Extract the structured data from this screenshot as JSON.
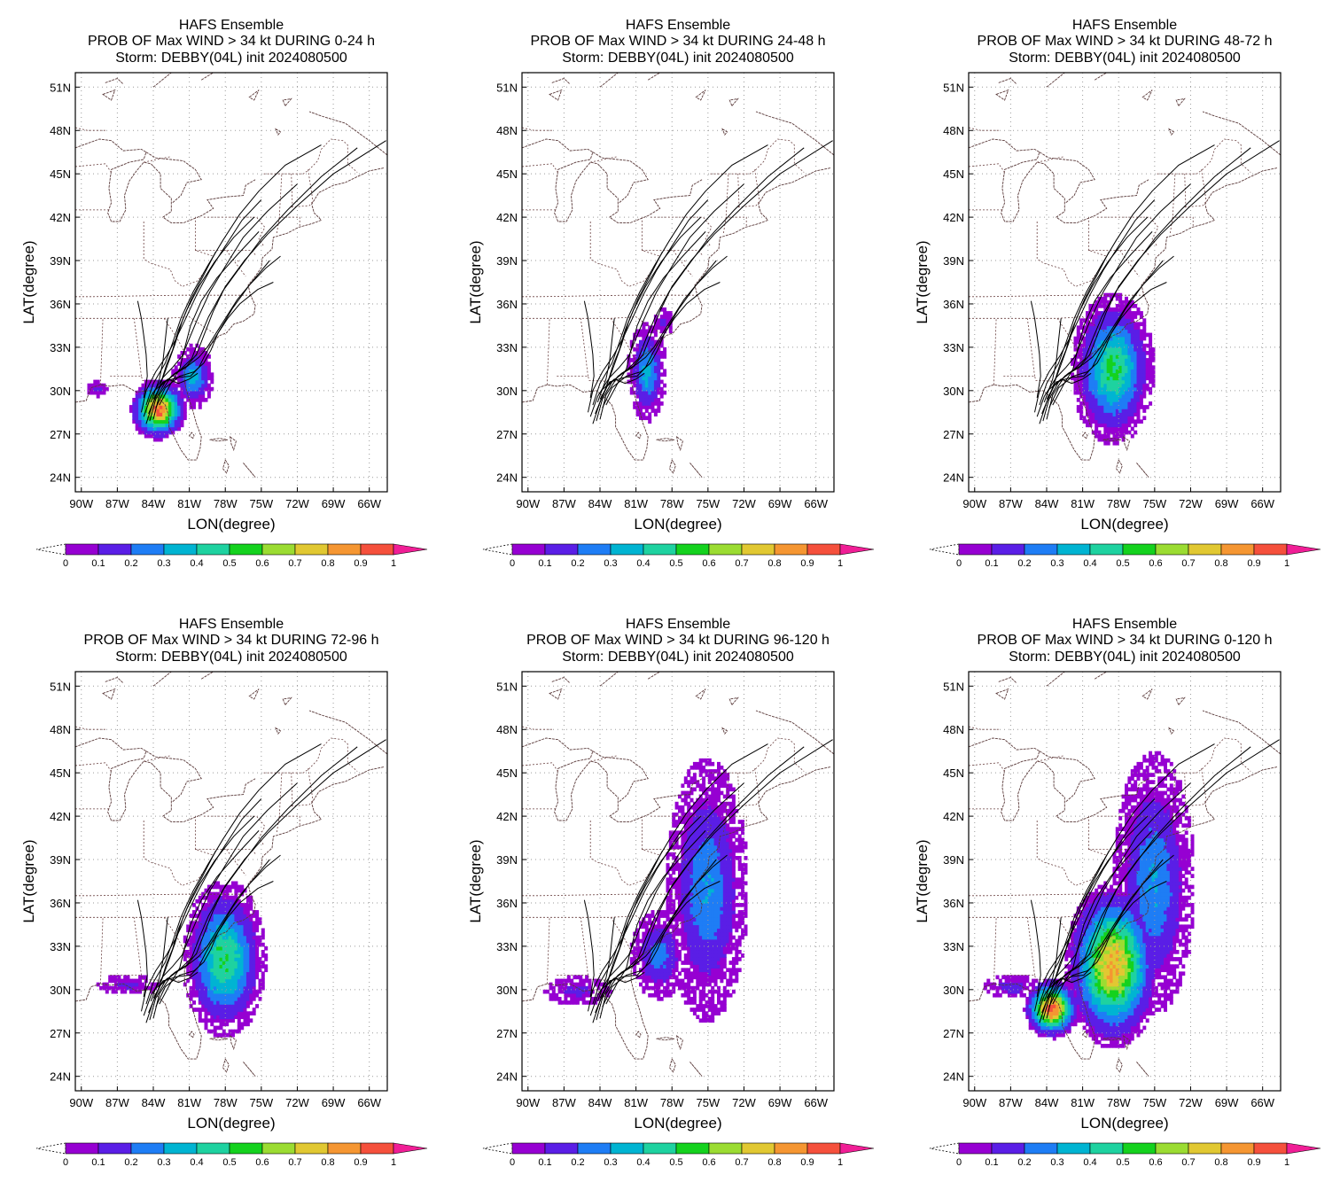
{
  "figure": {
    "panel_title": "HAFS Ensemble",
    "storm_line": "Storm: DEBBY(04L) init 2024080500",
    "colorbar_ticks": [
      "0",
      "0.1",
      "0.2",
      "0.3",
      "0.4",
      "0.5",
      "0.6",
      "0.7",
      "0.8",
      "0.9",
      "1"
    ],
    "colorbar_colors": [
      "#9600d2",
      "#5a1ee6",
      "#1e7df5",
      "#00b4d2",
      "#1ed2a0",
      "#14d21e",
      "#9bdc32",
      "#e1c832",
      "#f59632",
      "#f5503c"
    ],
    "colorbar_over_color": "#f01e96",
    "lat_ticks": [
      "24N",
      "27N",
      "30N",
      "33N",
      "36N",
      "39N",
      "42N",
      "45N",
      "48N",
      "51N"
    ],
    "lon_ticks": [
      "90W",
      "87W",
      "84W",
      "81W",
      "78W",
      "75W",
      "72W",
      "69W",
      "66W"
    ],
    "xlabel": "LON(degree)",
    "ylabel": "LAT(degree)"
  },
  "chart_data": [
    {
      "type": "heatmap",
      "title": [
        "HAFS Ensemble",
        "PROB OF Max WIND > 34 kt DURING  0-24 h",
        "Storm: DEBBY(04L) init 2024080500"
      ],
      "xlabel": "LON(degree)",
      "ylabel": "LAT(degree)",
      "xlim": [
        -90.5,
        -64.5
      ],
      "ylim": [
        23,
        52
      ],
      "grid": true,
      "probability_areas": [
        {
          "lon": -83.7,
          "lat": 28.6,
          "rx": 1.9,
          "ry": 1.7,
          "max": 0.95
        },
        {
          "lon": -80.8,
          "lat": 30.8,
          "rx": 1.4,
          "ry": 1.8,
          "max": 0.35
        },
        {
          "lon": -88.8,
          "lat": 30.0,
          "rx": 0.8,
          "ry": 0.5,
          "max": 0.15
        }
      ]
    },
    {
      "type": "heatmap",
      "title": [
        "HAFS Ensemble",
        "PROB OF Max WIND > 34 kt DURING 24-48 h",
        "Storm: DEBBY(04L) init 2024080500"
      ],
      "xlabel": "LON(degree)",
      "ylabel": "LAT(degree)",
      "xlim": [
        -90.5,
        -64.5
      ],
      "ylim": [
        23,
        52
      ],
      "grid": true,
      "probability_areas": [
        {
          "lon": -80.2,
          "lat": 31.2,
          "rx": 1.3,
          "ry": 2.8,
          "max": 0.35
        },
        {
          "lon": -78.8,
          "lat": 34.6,
          "rx": 0.8,
          "ry": 1.0,
          "max": 0.12
        }
      ]
    },
    {
      "type": "heatmap",
      "title": [
        "HAFS Ensemble",
        "PROB OF Max WIND > 34 kt DURING 48-72 h",
        "Storm: DEBBY(04L) init 2024080500"
      ],
      "xlabel": "LON(degree)",
      "ylabel": "LAT(degree)",
      "xlim": [
        -90.5,
        -64.5
      ],
      "ylim": [
        23,
        52
      ],
      "grid": true,
      "probability_areas": [
        {
          "lon": -78.6,
          "lat": 31.4,
          "rx": 2.8,
          "ry": 4.2,
          "max": 0.52
        }
      ]
    },
    {
      "type": "heatmap",
      "title": [
        "HAFS Ensemble",
        "PROB OF Max WIND > 34 kt DURING 72-96 h",
        "Storm: DEBBY(04L) init 2024080500"
      ],
      "xlabel": "LON(degree)",
      "ylabel": "LAT(degree)",
      "xlim": [
        -90.5,
        -64.5
      ],
      "ylim": [
        23,
        52
      ],
      "grid": true,
      "probability_areas": [
        {
          "lon": -78.2,
          "lat": 32.0,
          "rx": 2.8,
          "ry": 4.4,
          "max": 0.52
        },
        {
          "lon": -86.2,
          "lat": 30.2,
          "rx": 2.6,
          "ry": 0.7,
          "max": 0.12
        }
      ]
    },
    {
      "type": "heatmap",
      "title": [
        "HAFS Ensemble",
        "PROB OF Max WIND > 34 kt DURING 96-120 h",
        "Storm: DEBBY(04L) init 2024080500"
      ],
      "xlabel": "LON(degree)",
      "ylabel": "LAT(degree)",
      "xlim": [
        -90.5,
        -64.5
      ],
      "ylim": [
        23,
        52
      ],
      "grid": true,
      "probability_areas": [
        {
          "lon": -75.2,
          "lat": 36.8,
          "rx": 2.8,
          "ry": 7.5,
          "max": 0.3
        },
        {
          "lon": -79.2,
          "lat": 32.3,
          "rx": 2.0,
          "ry": 2.6,
          "max": 0.25
        },
        {
          "lon": -86.0,
          "lat": 29.8,
          "rx": 2.8,
          "ry": 1.0,
          "max": 0.12
        }
      ]
    },
    {
      "type": "heatmap",
      "title": [
        "HAFS Ensemble",
        "PROB OF Max WIND > 34 kt DURING 0-120 h",
        "Storm: DEBBY(04L) init 2024080500"
      ],
      "xlabel": "LON(degree)",
      "ylabel": "LAT(degree)",
      "xlim": [
        -90.5,
        -64.5
      ],
      "ylim": [
        23,
        52
      ],
      "grid": true,
      "probability_areas": [
        {
          "lon": -83.7,
          "lat": 28.6,
          "rx": 1.9,
          "ry": 1.7,
          "max": 0.95
        },
        {
          "lon": -78.6,
          "lat": 31.6,
          "rx": 3.2,
          "ry": 4.6,
          "max": 0.82
        },
        {
          "lon": -75.2,
          "lat": 37.2,
          "rx": 2.8,
          "ry": 7.5,
          "max": 0.3
        },
        {
          "lon": -87.0,
          "lat": 30.1,
          "rx": 2.2,
          "ry": 0.8,
          "max": 0.15
        }
      ]
    }
  ]
}
